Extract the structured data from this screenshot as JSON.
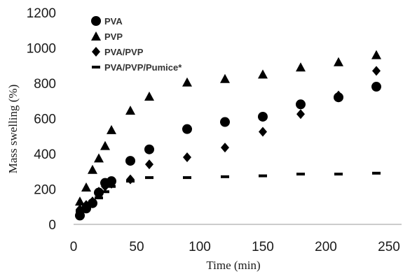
{
  "chart_data": {
    "type": "scatter",
    "xlabel": "Time (min)",
    "ylabel": "Mass swelling  (%)",
    "xlim": [
      0,
      260
    ],
    "ylim": [
      0,
      1200
    ],
    "xticks": [
      0,
      50,
      100,
      150,
      200,
      250
    ],
    "yticks": [
      0,
      200,
      400,
      600,
      800,
      1000,
      1200
    ],
    "grid": false,
    "legend_position": "top-left",
    "series": [
      {
        "name": "PVA",
        "marker": "circle",
        "color": "#000000",
        "x": [
          5,
          10,
          15,
          20,
          25,
          30,
          45,
          60,
          90,
          120,
          150,
          180,
          210,
          240
        ],
        "y": [
          50,
          90,
          120,
          180,
          235,
          245,
          360,
          425,
          540,
          580,
          610,
          680,
          720,
          780
        ]
      },
      {
        "name": "PVP",
        "marker": "triangle",
        "color": "#000000",
        "x": [
          5,
          10,
          15,
          20,
          25,
          30,
          45,
          60,
          90,
          120,
          150,
          180,
          210,
          240
        ],
        "y": [
          130,
          210,
          310,
          375,
          445,
          535,
          645,
          725,
          805,
          825,
          850,
          890,
          920,
          960
        ]
      },
      {
        "name": "PVA/PVP",
        "marker": "diamond",
        "color": "#000000",
        "x": [
          5,
          10,
          15,
          20,
          25,
          30,
          45,
          60,
          90,
          120,
          150,
          180,
          210,
          240
        ],
        "y": [
          85,
          110,
          130,
          185,
          215,
          230,
          255,
          340,
          380,
          435,
          525,
          625,
          730,
          870
        ]
      },
      {
        "name": "PVA/PVP/Pumice*",
        "marker": "dash",
        "color": "#000000",
        "x": [
          5,
          10,
          15,
          20,
          25,
          30,
          45,
          60,
          90,
          120,
          150,
          180,
          210,
          240
        ],
        "y": [
          75,
          100,
          125,
          150,
          185,
          215,
          245,
          265,
          265,
          270,
          275,
          285,
          285,
          290
        ]
      }
    ]
  }
}
